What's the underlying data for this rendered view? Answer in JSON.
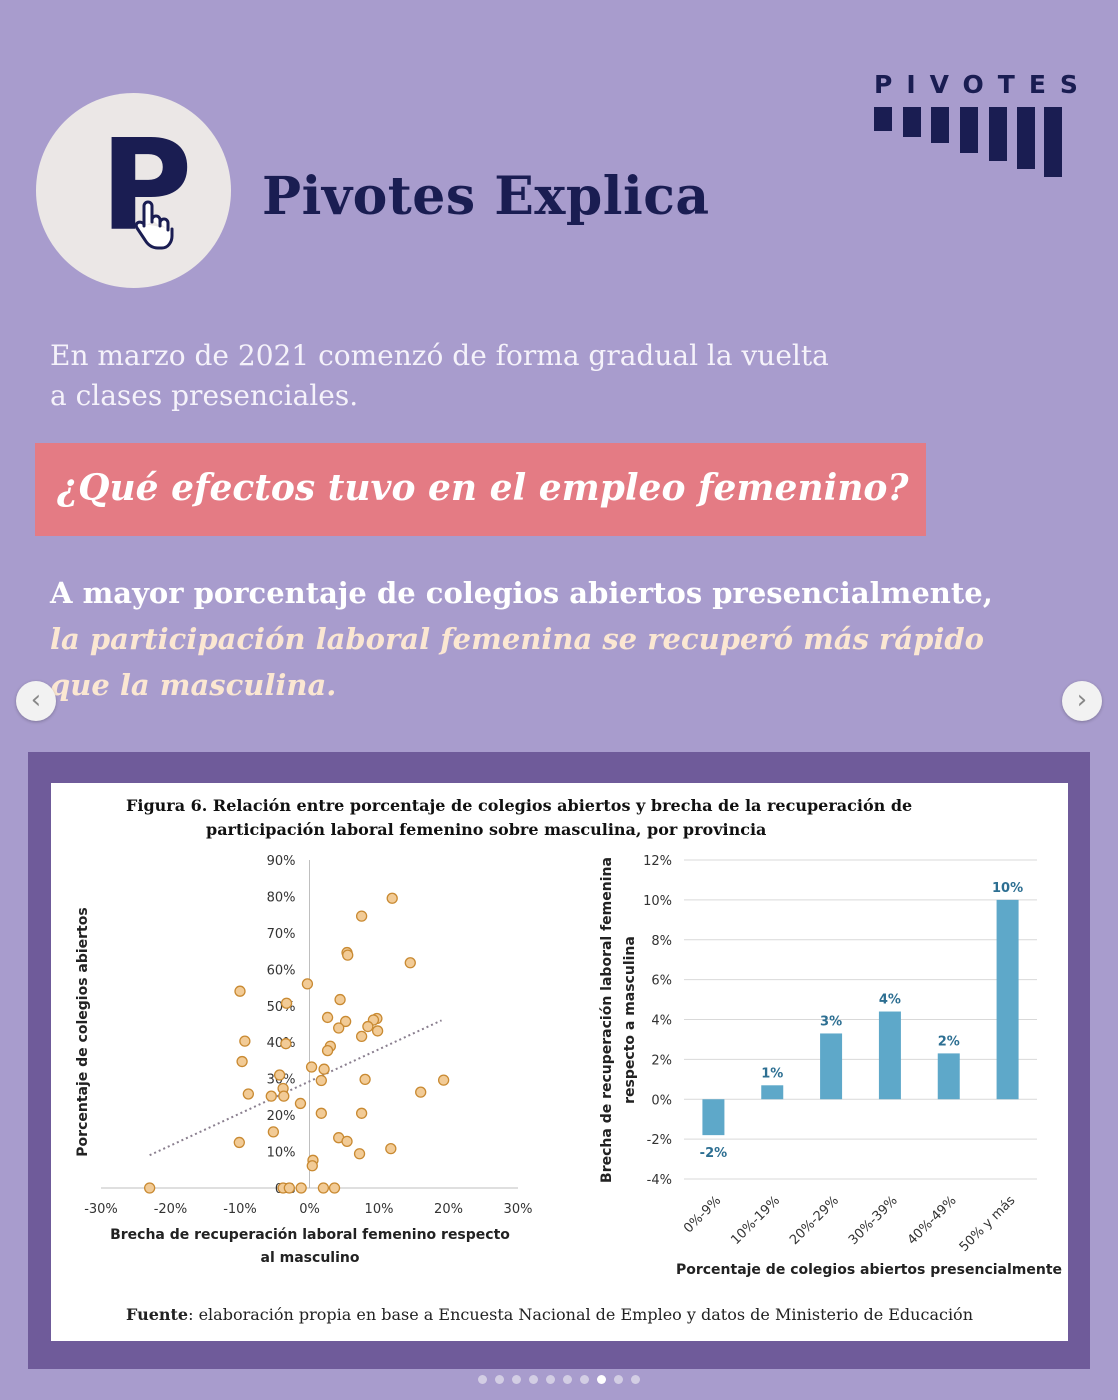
{
  "header": {
    "logo_letter": "P",
    "brand_title": "Pivotes Explica",
    "pivotes_wordmark": "PIVOTES"
  },
  "intro": {
    "line1": "En marzo de 2021 comenzó de forma gradual la vuelta",
    "line2": "a clases presenciales."
  },
  "banner": {
    "question": "¿Qué efectos tuvo en el empleo femenino?"
  },
  "claim": {
    "part1": "A mayor porcentaje de colegios abiertos presencialmente,",
    "part2": "la participación laboral femenina se recuperó más rápido",
    "part3": "que la masculina."
  },
  "navigation": {
    "prev_icon": "chevron-left-icon",
    "next_icon": "chevron-right-icon"
  },
  "figure": {
    "label": "Figura 6.",
    "title_line1": "Relación entre porcentaje de colegios abiertos y brecha de la recuperación de",
    "title_line2": "participación laboral femenino sobre masculina, por provincia",
    "source_label": "Fuente",
    "source_text": ": elaboración propia en base a Encuesta Nacional de Empleo y datos de Ministerio de Educación"
  },
  "chart_data": [
    {
      "type": "scatter",
      "xlabel_line1": "Brecha de recuperación laboral femenino respecto",
      "xlabel_line2": "al masculino",
      "ylabel": "Porcentaje de colegios abiertos",
      "xlim": [
        -30,
        30
      ],
      "ylim": [
        0,
        90
      ],
      "x_ticks": [
        "-30%",
        "-20%",
        "-10%",
        "0%",
        "10%",
        "20%",
        "30%"
      ],
      "y_ticks": [
        "0%",
        "10%",
        "20%",
        "30%",
        "40%",
        "50%",
        "60%",
        "70%",
        "80%",
        "90%"
      ],
      "trendline": {
        "style": "dotted",
        "x": [
          -23,
          19
        ],
        "y": [
          9,
          46
        ]
      },
      "points": [
        {
          "x": 11.9,
          "y": 79.5
        },
        {
          "x": 7.5,
          "y": 74.6
        },
        {
          "x": 5.4,
          "y": 64.6
        },
        {
          "x": 5.5,
          "y": 63.9
        },
        {
          "x": 14.5,
          "y": 61.8
        },
        {
          "x": -10.0,
          "y": 54.0
        },
        {
          "x": -0.3,
          "y": 56.0
        },
        {
          "x": 4.4,
          "y": 51.7
        },
        {
          "x": -3.3,
          "y": 50.7
        },
        {
          "x": 2.6,
          "y": 46.8
        },
        {
          "x": 5.2,
          "y": 45.7
        },
        {
          "x": 9.7,
          "y": 46.5
        },
        {
          "x": 9.2,
          "y": 46.1
        },
        {
          "x": 8.4,
          "y": 44.3
        },
        {
          "x": 4.2,
          "y": 43.9
        },
        {
          "x": 9.8,
          "y": 43.1
        },
        {
          "x": 7.5,
          "y": 41.6
        },
        {
          "x": -9.3,
          "y": 40.3
        },
        {
          "x": -3.4,
          "y": 39.6
        },
        {
          "x": 3.0,
          "y": 38.9
        },
        {
          "x": 2.6,
          "y": 37.7
        },
        {
          "x": -9.7,
          "y": 34.7
        },
        {
          "x": 0.3,
          "y": 33.2
        },
        {
          "x": 2.1,
          "y": 32.6
        },
        {
          "x": -4.3,
          "y": 31.0
        },
        {
          "x": 1.7,
          "y": 29.5
        },
        {
          "x": 8.0,
          "y": 29.8
        },
        {
          "x": 19.3,
          "y": 29.6
        },
        {
          "x": -3.8,
          "y": 27.3
        },
        {
          "x": 16.0,
          "y": 26.3
        },
        {
          "x": -8.8,
          "y": 25.8
        },
        {
          "x": -5.5,
          "y": 25.2
        },
        {
          "x": -3.7,
          "y": 25.2
        },
        {
          "x": -1.3,
          "y": 23.2
        },
        {
          "x": 1.7,
          "y": 20.5
        },
        {
          "x": 7.5,
          "y": 20.5
        },
        {
          "x": -5.2,
          "y": 15.4
        },
        {
          "x": 4.2,
          "y": 13.8
        },
        {
          "x": 5.4,
          "y": 12.8
        },
        {
          "x": -10.1,
          "y": 12.5
        },
        {
          "x": 11.7,
          "y": 10.8
        },
        {
          "x": 7.2,
          "y": 9.4
        },
        {
          "x": 0.5,
          "y": 7.6
        },
        {
          "x": 0.4,
          "y": 6.1
        },
        {
          "x": -23.0,
          "y": 0
        },
        {
          "x": -3.8,
          "y": 0
        },
        {
          "x": -2.9,
          "y": 0
        },
        {
          "x": -1.2,
          "y": 0
        },
        {
          "x": 2.0,
          "y": 0
        },
        {
          "x": 3.6,
          "y": 0
        }
      ]
    },
    {
      "type": "bar",
      "categories": [
        "0%-9%",
        "10%-19%",
        "20%-29%",
        "30%-39%",
        "40%-49%",
        "50% y más"
      ],
      "values": [
        -1.8,
        0.7,
        3.3,
        4.4,
        2.3,
        10.0
      ],
      "data_labels": [
        "-2%",
        "1%",
        "3%",
        "4%",
        "2%",
        "10%"
      ],
      "xlabel": "Porcentaje de colegios abiertos presencialmente",
      "ylabel_line1": "Brecha de recuperación laboral femenina",
      "ylabel_line2": "respecto a masculina",
      "ylim": [
        -4,
        12
      ],
      "y_ticks": [
        "-4%",
        "-2%",
        "0%",
        "2%",
        "4%",
        "6%",
        "8%",
        "10%",
        "12%"
      ],
      "grid": true,
      "colors": {
        "bar": "#5ea8c9",
        "label": "#2d6f92"
      }
    }
  ],
  "carousel": {
    "total": 10,
    "active_index": 7
  },
  "colors": {
    "background": "#a89ccd",
    "navy": "#1a1d52",
    "banner": "#e47b84",
    "frame": "#6f5b9a",
    "highlight_text": "#fbe7d2",
    "point_fill": "#f2cb96",
    "point_stroke": "#c98a32"
  }
}
